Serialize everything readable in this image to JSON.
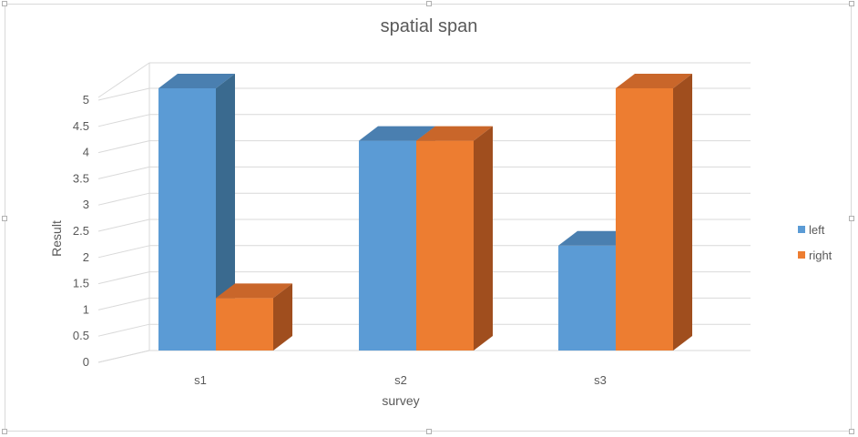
{
  "chart_data": {
    "type": "bar",
    "title": "spatial span",
    "xlabel": "survey",
    "ylabel": "Result",
    "categories": [
      "s1",
      "s2",
      "s3"
    ],
    "series": [
      {
        "name": "left",
        "values": [
          5,
          4,
          2
        ],
        "color": "#5b9bd5",
        "color_side": "#3a6a8f",
        "color_top": "#4a7fb0"
      },
      {
        "name": "right",
        "values": [
          1,
          4,
          5
        ],
        "color": "#ed7d31",
        "color_side": "#a04e1e",
        "color_top": "#c9662a"
      }
    ],
    "yticks": [
      "0",
      "0.5",
      "1",
      "1.5",
      "2",
      "2.5",
      "3",
      "3.5",
      "4",
      "4.5",
      "5"
    ],
    "ylim": [
      0,
      5
    ],
    "grid": true,
    "legend_position": "right",
    "style": "3d-clustered-column"
  }
}
